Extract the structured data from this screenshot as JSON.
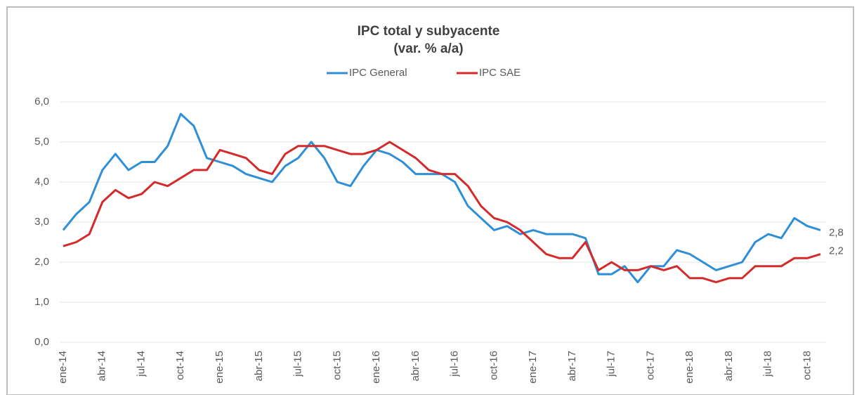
{
  "chart_data": {
    "type": "line",
    "title": "IPC total y subyacente",
    "subtitle": "(var. % a/a)",
    "categories": [
      "ene-14",
      null,
      null,
      "abr-14",
      null,
      null,
      "jul-14",
      null,
      null,
      "oct-14",
      null,
      null,
      "ene-15",
      null,
      null,
      "abr-15",
      null,
      null,
      "jul-15",
      null,
      null,
      "oct-15",
      null,
      null,
      "ene-16",
      null,
      null,
      "abr-16",
      null,
      null,
      "jul-16",
      null,
      null,
      "oct-16",
      null,
      null,
      "ene-17",
      null,
      null,
      "abr-17",
      null,
      null,
      "jul-17",
      null,
      null,
      "oct-17",
      null,
      null,
      "ene-18",
      null,
      null,
      "abr-18",
      null,
      null,
      "jul-18",
      null,
      null,
      "oct-18",
      null
    ],
    "series": [
      {
        "name": "IPC General",
        "color": "#2e8fd6",
        "values": [
          2.8,
          3.2,
          3.5,
          4.3,
          4.7,
          4.3,
          4.5,
          4.5,
          4.9,
          5.7,
          5.4,
          4.6,
          4.5,
          4.4,
          4.2,
          4.1,
          4.0,
          4.4,
          4.6,
          5.0,
          4.6,
          4.0,
          3.9,
          4.4,
          4.8,
          4.7,
          4.5,
          4.2,
          4.2,
          4.2,
          4.0,
          3.4,
          3.1,
          2.8,
          2.9,
          2.7,
          2.8,
          2.7,
          2.7,
          2.7,
          2.6,
          1.7,
          1.7,
          1.9,
          1.5,
          1.9,
          1.9,
          2.3,
          2.2,
          2.0,
          1.8,
          1.9,
          2.0,
          2.5,
          2.7,
          2.6,
          3.1,
          2.9,
          2.8
        ],
        "value_labels": [
          null,
          null,
          null,
          null,
          null,
          null,
          null,
          null,
          null,
          null,
          null,
          null,
          null,
          null,
          null,
          null,
          null,
          null,
          null,
          null,
          null,
          null,
          null,
          null,
          null,
          null,
          null,
          null,
          null,
          null,
          null,
          null,
          null,
          null,
          null,
          null,
          null,
          null,
          null,
          null,
          null,
          null,
          null,
          null,
          null,
          null,
          null,
          null,
          null,
          null,
          null,
          null,
          null,
          null,
          null,
          null,
          null,
          null,
          "2,8"
        ]
      },
      {
        "name": "IPC SAE",
        "color": "#d42a2a",
        "values": [
          2.4,
          2.5,
          2.7,
          3.5,
          3.8,
          3.6,
          3.7,
          4.0,
          3.9,
          4.1,
          4.3,
          4.3,
          4.8,
          4.7,
          4.6,
          4.3,
          4.2,
          4.7,
          4.9,
          4.9,
          4.9,
          4.8,
          4.7,
          4.7,
          4.8,
          5.0,
          4.8,
          4.6,
          4.3,
          4.2,
          4.2,
          3.9,
          3.4,
          3.1,
          3.0,
          2.8,
          2.5,
          2.2,
          2.1,
          2.1,
          2.5,
          1.8,
          2.0,
          1.8,
          1.8,
          1.9,
          1.8,
          1.9,
          1.6,
          1.6,
          1.5,
          1.6,
          1.6,
          1.9,
          1.9,
          1.9,
          2.1,
          2.1,
          2.2
        ],
        "value_labels": [
          null,
          null,
          null,
          null,
          null,
          null,
          null,
          null,
          null,
          null,
          null,
          null,
          null,
          null,
          null,
          null,
          null,
          null,
          null,
          null,
          null,
          null,
          null,
          null,
          null,
          null,
          null,
          null,
          null,
          null,
          null,
          null,
          null,
          null,
          null,
          null,
          null,
          null,
          null,
          null,
          null,
          null,
          null,
          null,
          null,
          null,
          null,
          null,
          null,
          null,
          null,
          null,
          null,
          null,
          null,
          null,
          null,
          null,
          "2,2"
        ]
      }
    ],
    "ylim": [
      0,
      6
    ],
    "yticks": [
      {
        "value": 0,
        "label": "0,0"
      },
      {
        "value": 1,
        "label": "1,0"
      },
      {
        "value": 2,
        "label": "2,0"
      },
      {
        "value": 3,
        "label": "3,0"
      },
      {
        "value": 4,
        "label": "4,0"
      },
      {
        "value": 5,
        "label": "5,0"
      },
      {
        "value": 6,
        "label": "6,0"
      }
    ],
    "grid": true,
    "legend": "top"
  }
}
